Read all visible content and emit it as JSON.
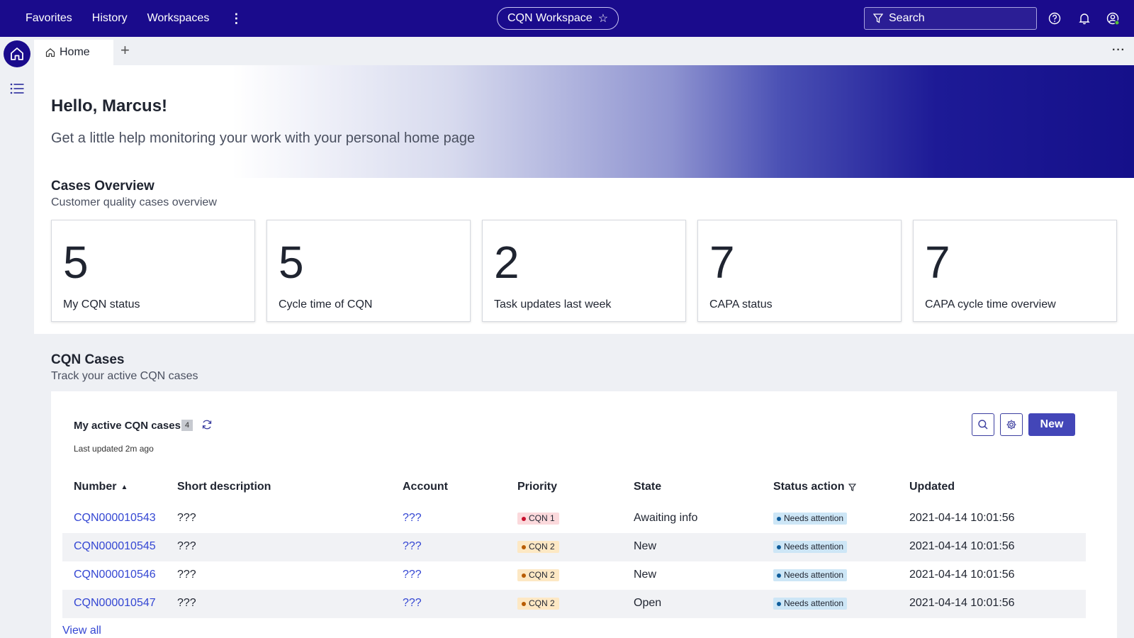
{
  "topnav": {
    "links": [
      "Favorites",
      "History",
      "Workspaces"
    ],
    "workspace": "CQN Workspace",
    "search_placeholder": "Search"
  },
  "tabs": {
    "home_label": "Home"
  },
  "hero": {
    "title": "Hello, Marcus!",
    "subtitle": "Get a little help monitoring your work with your personal home page"
  },
  "overview": {
    "title": "Cases Overview",
    "subtitle": "Customer quality cases overview",
    "cards": [
      {
        "value": "5",
        "label": "My CQN status"
      },
      {
        "value": "5",
        "label": "Cycle time of CQN"
      },
      {
        "value": "2",
        "label": "Task updates last week"
      },
      {
        "value": "7",
        "label": "CAPA status"
      },
      {
        "value": "7",
        "label": "CAPA cycle time overview"
      }
    ]
  },
  "cases": {
    "title": "CQN Cases",
    "subtitle": "Track your active CQN cases",
    "list_title": "My active CQN cases",
    "count": "4",
    "last_updated": "Last updated 2m ago",
    "new_label": "New",
    "view_all": "View all",
    "columns": [
      "Number",
      "Short description",
      "Account",
      "Priority",
      "State",
      "Status action",
      "Updated"
    ],
    "rows": [
      {
        "number": "CQN000010543",
        "desc": "???",
        "account": "???",
        "priority": "CQN 1",
        "priority_bg": "#fbd9dc",
        "priority_dot": "#c8102e",
        "state": "Awaiting info",
        "status": "Needs attention",
        "updated": "2021-04-14 10:01:56"
      },
      {
        "number": "CQN000010545",
        "desc": "???",
        "account": "???",
        "priority": "CQN 2",
        "priority_bg": "#fde8c4",
        "priority_dot": "#b85c00",
        "state": "New",
        "status": "Needs attention",
        "updated": "2021-04-14 10:01:56"
      },
      {
        "number": "CQN000010546",
        "desc": "???",
        "account": "???",
        "priority": "CQN 2",
        "priority_bg": "#fde8c4",
        "priority_dot": "#b85c00",
        "state": "New",
        "status": "Needs attention",
        "updated": "2021-04-14 10:01:56"
      },
      {
        "number": "CQN000010547",
        "desc": "???",
        "account": "???",
        "priority": "CQN 2",
        "priority_bg": "#fde8c4",
        "priority_dot": "#b85c00",
        "state": "Open",
        "status": "Needs attention",
        "updated": "2021-04-14 10:01:56"
      }
    ]
  },
  "icons": {
    "filter": "filter-icon",
    "help": "help-icon",
    "bell": "bell-icon",
    "profile": "profile-icon",
    "home": "home-icon",
    "list": "list-icon",
    "refresh": "refresh-icon",
    "search": "search-icon",
    "gear": "gear-icon"
  },
  "colors": {
    "brand": "#1a0b8c",
    "accent": "#4346b8",
    "link": "#3346d3"
  }
}
